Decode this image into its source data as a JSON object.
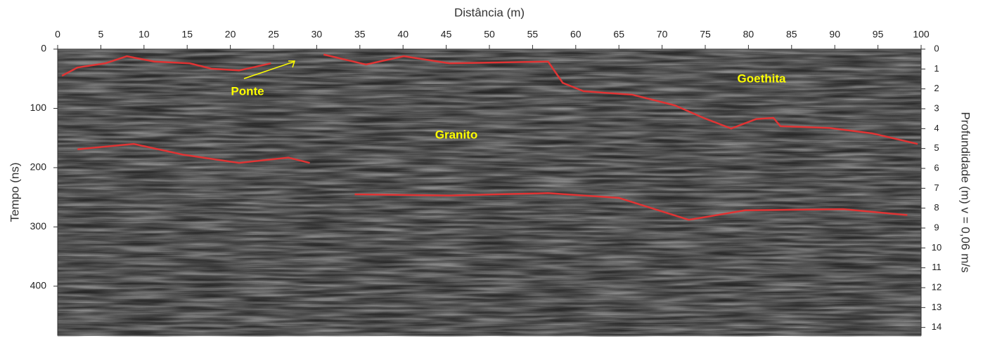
{
  "chart_data": {
    "type": "radargram",
    "x_label": "Distância (m)",
    "y_label": "Tempo (ns)",
    "y2_label": "Profundidade (m) v = 0,06 m/s",
    "xlim": [
      0,
      100
    ],
    "xticks": [
      0,
      5,
      10,
      15,
      20,
      25,
      30,
      35,
      40,
      45,
      50,
      55,
      60,
      65,
      70,
      75,
      80,
      85,
      90,
      95,
      100
    ],
    "ylim": [
      0,
      483
    ],
    "yticks": [
      0,
      100,
      200,
      300,
      400
    ],
    "y2lim": [
      0,
      14.4
    ],
    "y2ticks": [
      0,
      1,
      2,
      3,
      4,
      5,
      6,
      7,
      8,
      9,
      10,
      11,
      12,
      13,
      14
    ],
    "series": [
      {
        "color": "#e03434",
        "x": [
          0.5,
          2.3,
          5.5,
          8,
          11.2,
          15.3,
          17.8,
          21,
          24.7
        ],
        "values": [
          45,
          31,
          24,
          12,
          21,
          24,
          33,
          36,
          24
        ]
      },
      {
        "color": "#e03434",
        "x": [
          30.8,
          35.7,
          40.1,
          45.4,
          56.8,
          58.5,
          60.9,
          66.6,
          71.5,
          74.8,
          78,
          80.9,
          82.9,
          83.7,
          89.4,
          94.3,
          99.6
        ],
        "values": [
          9,
          26,
          12,
          24,
          21,
          57,
          71,
          77,
          95,
          116,
          134,
          118,
          116,
          130,
          133,
          142,
          160
        ]
      },
      {
        "color": "#e03434",
        "x": [
          2.3,
          8.8,
          14.5,
          21,
          26.7,
          29.2
        ],
        "values": [
          169,
          160,
          178,
          192,
          183,
          192
        ]
      },
      {
        "color": "#e03434",
        "x": [
          34.4,
          45.4,
          56.8,
          65,
          73.1,
          79.6,
          91,
          98.4
        ],
        "values": [
          245,
          247,
          243,
          251,
          288,
          272,
          270,
          280
        ]
      }
    ],
    "annotations": [
      "Ponte",
      "Granito",
      "Goethita"
    ]
  }
}
